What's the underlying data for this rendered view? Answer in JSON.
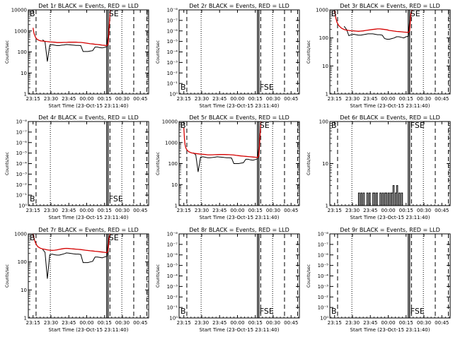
{
  "figure": {
    "x_tick_labels": [
      "23:15",
      "23:30",
      "23:45",
      "00:00",
      "00:15",
      "00:30",
      "00:45"
    ],
    "xlabel": "Start Time (23-Oct-15 23:11:40)",
    "ylabel": "Counts/sec",
    "colors": {
      "events": "#000000",
      "lld": "#d40000",
      "axes": "#000000"
    }
  },
  "chart_data": [
    {
      "type": "line",
      "title": "Det 1r BLACK = Events, RED = LLD",
      "ylim": [
        1,
        10000
      ],
      "ytick_labels": [
        "1",
        "10",
        "100",
        "1000",
        "10000"
      ],
      "x": [
        0,
        0.5,
        1,
        1.5,
        2,
        3,
        4,
        6,
        8,
        10,
        12,
        14,
        16,
        18,
        20,
        22,
        24,
        26,
        28,
        30,
        32,
        34,
        36,
        38,
        40,
        42,
        44,
        46,
        48,
        50,
        52,
        54,
        56,
        58,
        60,
        62,
        63,
        63.5,
        64,
        64.5,
        65
      ],
      "series": [
        {
          "name": "Events",
          "values": [
            null,
            null,
            null,
            null,
            null,
            null,
            null,
            null,
            380,
            300,
            35,
            210,
            220,
            210,
            200,
            200,
            210,
            215,
            225,
            220,
            215,
            210,
            205,
            205,
            200,
            105,
            105,
            105,
            110,
            115,
            170,
            170,
            160,
            155,
            165,
            180,
            700,
            null,
            null,
            null,
            null
          ]
        },
        {
          "name": "LLD",
          "values": [
            1400,
            900,
            700,
            600,
            500,
            420,
            380,
            340,
            330,
            320,
            310,
            300,
            295,
            290,
            280,
            280,
            280,
            285,
            285,
            290,
            290,
            290,
            290,
            285,
            285,
            275,
            265,
            255,
            245,
            240,
            230,
            225,
            220,
            210,
            205,
            200,
            250,
            600,
            2000,
            6000,
            15000
          ]
        }
      ],
      "markers": [
        "B",
        "SE"
      ]
    },
    {
      "type": "line",
      "title": "Det 2r BLACK = Events, RED = LLD",
      "ylim": [
        1,
        10000
      ],
      "ytick_labels": [
        "10⁰",
        "10⁻¹",
        "10⁻²",
        "10⁻³",
        "10⁻⁴",
        "10⁻⁵",
        "10⁻⁶",
        "10⁻⁷",
        "10⁻⁸"
      ],
      "x": [],
      "series": [],
      "markers": [
        "B",
        "FSE"
      ]
    },
    {
      "type": "line",
      "title": "Det 3r BLACK = Events, RED = LLD",
      "ylim": [
        1,
        1000
      ],
      "ytick_labels": [
        "1",
        "10",
        "100",
        "1000"
      ],
      "x": [
        0,
        0.5,
        1,
        1.5,
        2,
        3,
        4,
        6,
        8,
        10,
        12,
        14,
        16,
        18,
        20,
        22,
        24,
        26,
        28,
        30,
        32,
        34,
        36,
        38,
        40,
        42,
        44,
        46,
        48,
        50,
        52,
        54,
        56,
        58,
        60,
        62,
        63,
        63.5,
        64,
        64.5,
        65
      ],
      "series": [
        {
          "name": "Events",
          "values": [
            null,
            null,
            null,
            null,
            null,
            null,
            null,
            null,
            260,
            200,
            120,
            130,
            135,
            130,
            125,
            125,
            130,
            135,
            140,
            140,
            140,
            135,
            130,
            130,
            125,
            95,
            90,
            90,
            95,
            100,
            110,
            110,
            105,
            100,
            110,
            115,
            450,
            null,
            null,
            null,
            null
          ]
        },
        {
          "name": "LLD",
          "values": [
            950,
            700,
            520,
            430,
            360,
            300,
            260,
            220,
            200,
            190,
            185,
            180,
            178,
            175,
            172,
            175,
            178,
            185,
            190,
            195,
            200,
            205,
            210,
            210,
            205,
            200,
            195,
            185,
            180,
            175,
            170,
            168,
            165,
            162,
            160,
            158,
            180,
            350,
            700,
            900,
            1000
          ]
        }
      ],
      "markers": [
        "B",
        "SE"
      ]
    },
    {
      "type": "line",
      "title": "Det 4r BLACK = Events, RED = LLD",
      "ylim": [
        1,
        10000
      ],
      "ytick_labels": [
        "10⁰",
        "10⁻¹",
        "10⁻²",
        "10⁻³",
        "10⁻⁴",
        "10⁻⁵",
        "10⁻⁶",
        "10⁻⁷",
        "10⁻⁸"
      ],
      "x": [],
      "series": [],
      "markers": [
        "B",
        "FSE"
      ]
    },
    {
      "type": "line",
      "title": "Det 5r BLACK = Events, RED = LLD",
      "ylim": [
        1,
        10000
      ],
      "ytick_labels": [
        "1",
        "10",
        "100",
        "1000",
        "10000"
      ],
      "x": [
        0,
        0.5,
        1,
        1.5,
        2,
        3,
        4,
        6,
        8,
        10,
        12,
        14,
        16,
        18,
        20,
        22,
        24,
        26,
        28,
        30,
        32,
        34,
        36,
        38,
        40,
        42,
        44,
        46,
        48,
        50,
        52,
        54,
        56,
        58,
        60,
        62,
        63,
        63.5,
        64,
        64.5,
        65
      ],
      "series": [
        {
          "name": "Events",
          "values": [
            null,
            null,
            null,
            null,
            null,
            null,
            null,
            null,
            330,
            260,
            40,
            200,
            210,
            200,
            190,
            190,
            195,
            200,
            210,
            205,
            200,
            195,
            190,
            190,
            185,
            100,
            100,
            100,
            105,
            110,
            160,
            160,
            150,
            145,
            155,
            170,
            650,
            null,
            null,
            null,
            null
          ]
        },
        {
          "name": "LLD",
          "values": [
            5000,
            1500,
            800,
            600,
            500,
            420,
            370,
            330,
            310,
            300,
            290,
            280,
            275,
            270,
            262,
            262,
            262,
            265,
            268,
            270,
            270,
            270,
            268,
            265,
            262,
            255,
            245,
            238,
            230,
            225,
            220,
            215,
            210,
            205,
            200,
            195,
            260,
            700,
            2500,
            7000,
            15000
          ]
        }
      ],
      "markers": [
        "B",
        "SE"
      ]
    },
    {
      "type": "line",
      "title": "Det 6r BLACK = Events, RED = LLD",
      "ylim": [
        1,
        100
      ],
      "ytick_labels": [
        "1",
        "10",
        "100"
      ],
      "x": [
        20,
        21,
        22,
        23,
        24,
        25,
        26,
        27,
        28,
        29,
        30,
        31,
        32,
        33,
        34,
        35,
        36,
        37,
        38,
        39,
        40,
        41,
        42,
        43,
        44,
        45,
        46,
        47,
        48,
        49,
        50,
        51,
        52,
        53,
        54,
        55,
        56
      ],
      "series": [
        {
          "name": "Events",
          "values": [
            2,
            1,
            2,
            1,
            2,
            1,
            1,
            2,
            1,
            2,
            1,
            1,
            2,
            2,
            1,
            2,
            1,
            1,
            2,
            1,
            2,
            1,
            2,
            2,
            1,
            2,
            1,
            2,
            2,
            3,
            1,
            2,
            3,
            1,
            2,
            1,
            2
          ]
        }
      ],
      "markers": [
        "B",
        "FSE"
      ]
    },
    {
      "type": "line",
      "title": "Det 7r BLACK = Events, RED = LLD",
      "ylim": [
        1,
        1000
      ],
      "ytick_labels": [
        "1",
        "10",
        "100",
        "1000"
      ],
      "x": [
        0,
        0.5,
        1,
        1.5,
        2,
        3,
        4,
        6,
        8,
        10,
        12,
        14,
        16,
        18,
        20,
        22,
        24,
        26,
        28,
        30,
        32,
        34,
        36,
        38,
        40,
        42,
        44,
        46,
        48,
        50,
        52,
        54,
        56,
        58,
        60,
        62,
        63,
        63.5,
        64,
        64.5,
        65
      ],
      "series": [
        {
          "name": "Events",
          "values": [
            null,
            null,
            null,
            null,
            null,
            null,
            null,
            null,
            280,
            220,
            25,
            180,
            190,
            180,
            175,
            175,
            185,
            195,
            210,
            205,
            200,
            195,
            190,
            190,
            185,
            95,
            95,
            95,
            100,
            105,
            150,
            150,
            145,
            140,
            150,
            160,
            600,
            null,
            null,
            null,
            null
          ]
        },
        {
          "name": "LLD",
          "values": [
            1000,
            800,
            650,
            550,
            480,
            400,
            350,
            310,
            290,
            280,
            270,
            262,
            258,
            262,
            270,
            280,
            290,
            300,
            305,
            300,
            295,
            290,
            285,
            280,
            275,
            270,
            262,
            255,
            250,
            245,
            240,
            235,
            230,
            225,
            220,
            215,
            260,
            500,
            800,
            950,
            1000
          ]
        }
      ],
      "markers": [
        "B",
        "SE"
      ]
    },
    {
      "type": "line",
      "title": "Det 8r BLACK = Events, RED = LLD",
      "ylim": [
        1,
        10000
      ],
      "ytick_labels": [
        "10⁰",
        "10⁻¹",
        "10⁻²",
        "10⁻³",
        "10⁻⁴",
        "10⁻⁵",
        "10⁻⁶",
        "10⁻⁷",
        "10⁻⁸"
      ],
      "x": [],
      "series": [],
      "markers": [
        "B",
        "FSE"
      ]
    },
    {
      "type": "line",
      "title": "Det 9r BLACK = Events, RED = LLD",
      "ylim": [
        1,
        10000
      ],
      "ytick_labels": [
        "10⁰",
        "10⁻¹",
        "10⁻²",
        "10⁻³",
        "10⁻⁴",
        "10⁻⁵",
        "10⁻⁶",
        "10⁻⁷",
        "10⁻⁸"
      ],
      "x": [],
      "series": [],
      "markers": [
        "B",
        "FSE"
      ]
    }
  ]
}
